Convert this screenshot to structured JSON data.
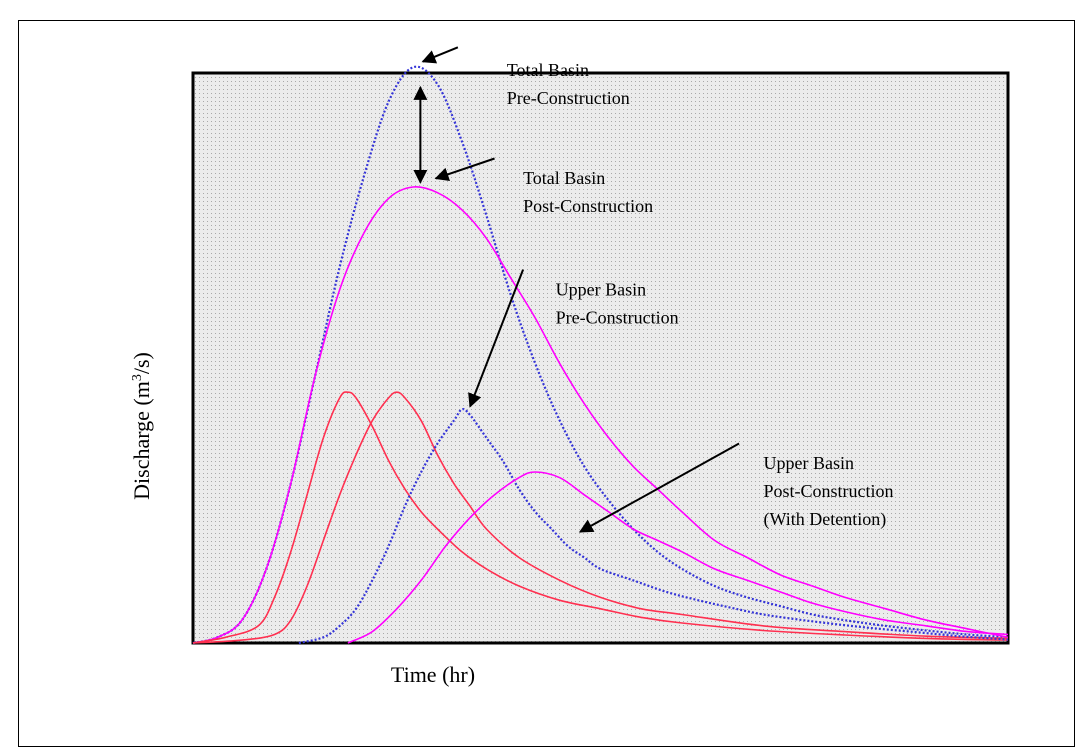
{
  "chart_data": {
    "type": "line",
    "title": "",
    "xlabel": "Time (hr)",
    "ylabel_main": "Discharge (m",
    "ylabel_sup": "3",
    "ylabel_end": "/s)",
    "ylim": [
      0,
      100
    ],
    "xlim": [
      0,
      100
    ],
    "grid": true,
    "series": [
      {
        "color": "#3535d8",
        "style": "dotted",
        "x": [
          0,
          3,
          6,
          9,
          12,
          15,
          18,
          21,
          24,
          27,
          30,
          33,
          36,
          39,
          42,
          45,
          48,
          51,
          54,
          57,
          60,
          64,
          68,
          72,
          76,
          80,
          85,
          90,
          95,
          100
        ],
        "y": [
          0,
          1,
          4,
          13,
          28,
          47,
          66,
          82,
          95,
          101,
          98,
          88,
          75,
          61,
          49,
          39,
          31,
          25,
          20,
          16,
          13,
          10,
          8,
          6.5,
          5,
          4,
          3,
          2.2,
          1.5,
          1
        ]
      },
      {
        "color": "#ff00ff",
        "style": "solid",
        "x": [
          0,
          3,
          6,
          9,
          12,
          15,
          18,
          21,
          24,
          27,
          30,
          33,
          36,
          39,
          42,
          45,
          48,
          51,
          54,
          57,
          60,
          64,
          68,
          72,
          76,
          80,
          85,
          90,
          95,
          100
        ],
        "y": [
          0,
          1,
          4,
          13,
          28,
          47,
          62,
          72,
          78,
          80,
          79,
          76,
          71,
          64,
          57,
          49,
          42,
          36,
          31,
          27,
          23,
          18,
          15,
          12,
          10,
          8,
          6,
          4,
          2.5,
          1
        ]
      },
      {
        "color": "#ff3050",
        "style": "solid",
        "x": [
          0,
          4,
          8,
          10,
          12,
          14,
          16,
          18,
          19,
          20,
          22,
          24,
          26,
          28,
          30,
          33,
          36,
          40,
          45,
          50,
          55,
          60,
          70,
          80,
          90,
          100
        ],
        "y": [
          0,
          1,
          3,
          8,
          16,
          26,
          36,
          43,
          44,
          43,
          38,
          32,
          27,
          23,
          20,
          16,
          13,
          10,
          7.5,
          6,
          4.5,
          3.5,
          2.2,
          1.4,
          0.8,
          0.5
        ]
      },
      {
        "color": "#ff3050",
        "style": "solid",
        "x": [
          0,
          6,
          10,
          12,
          14,
          16,
          18,
          20,
          22,
          24,
          25,
          26,
          28,
          30,
          32,
          34,
          36,
          40,
          45,
          50,
          55,
          60,
          70,
          80,
          90,
          100
        ],
        "y": [
          0,
          0.5,
          1.5,
          4,
          10,
          18,
          26,
          33,
          39,
          43,
          44,
          43,
          39,
          33,
          28,
          24,
          20,
          15,
          11,
          8,
          6,
          5,
          3,
          2,
          1.2,
          0.8
        ]
      },
      {
        "color": "#3535d8",
        "style": "dotted",
        "x": [
          13,
          16,
          18,
          20,
          22,
          24,
          26,
          28,
          30,
          32,
          33,
          34,
          36,
          38,
          40,
          42,
          44,
          46,
          48,
          50,
          54,
          58,
          62,
          66,
          70,
          76,
          82,
          88,
          94,
          100
        ],
        "y": [
          0,
          1,
          3,
          6,
          11,
          17,
          24,
          30,
          35,
          39,
          41,
          40,
          36,
          32,
          27,
          23,
          20,
          17,
          15,
          13,
          11,
          9,
          7.5,
          6.2,
          5,
          3.8,
          2.8,
          2,
          1.2,
          0.6
        ]
      },
      {
        "color": "#ff00ff",
        "style": "solid",
        "x": [
          19,
          22,
          25,
          28,
          31,
          34,
          37,
          40,
          42,
          45,
          48,
          51,
          54,
          57,
          60,
          64,
          68,
          72,
          76,
          80,
          85,
          90,
          95,
          100
        ],
        "y": [
          0,
          2,
          6,
          11,
          17,
          22,
          26,
          29,
          30,
          29,
          26,
          23,
          20,
          18,
          16,
          13,
          11,
          9,
          7,
          5.5,
          4,
          3,
          2,
          1.5
        ]
      }
    ],
    "annotations": [
      {
        "lines": [
          "Total Basin",
          "Pre-Construction"
        ]
      },
      {
        "lines": [
          "Total Basin",
          "Post-Construction"
        ]
      },
      {
        "lines": [
          "Upper Basin",
          "Pre-Construction"
        ]
      },
      {
        "lines": [
          "Upper Basin",
          "Post-Construction",
          "(With Detention)"
        ]
      }
    ]
  }
}
